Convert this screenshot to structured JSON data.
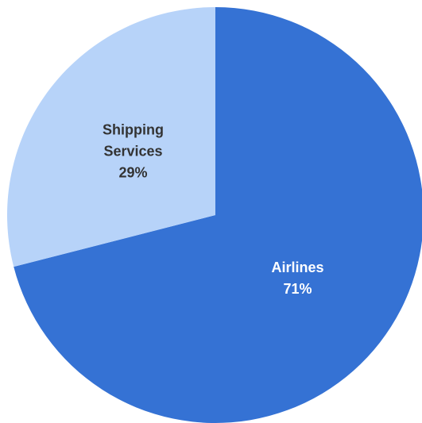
{
  "chart_data": {
    "type": "pie",
    "categories": [
      "Airlines",
      "Shipping Services"
    ],
    "values": [
      71,
      29
    ],
    "value_labels": [
      "71%",
      "29%"
    ],
    "colors": [
      "#3572d4",
      "#b7d3f9"
    ]
  }
}
